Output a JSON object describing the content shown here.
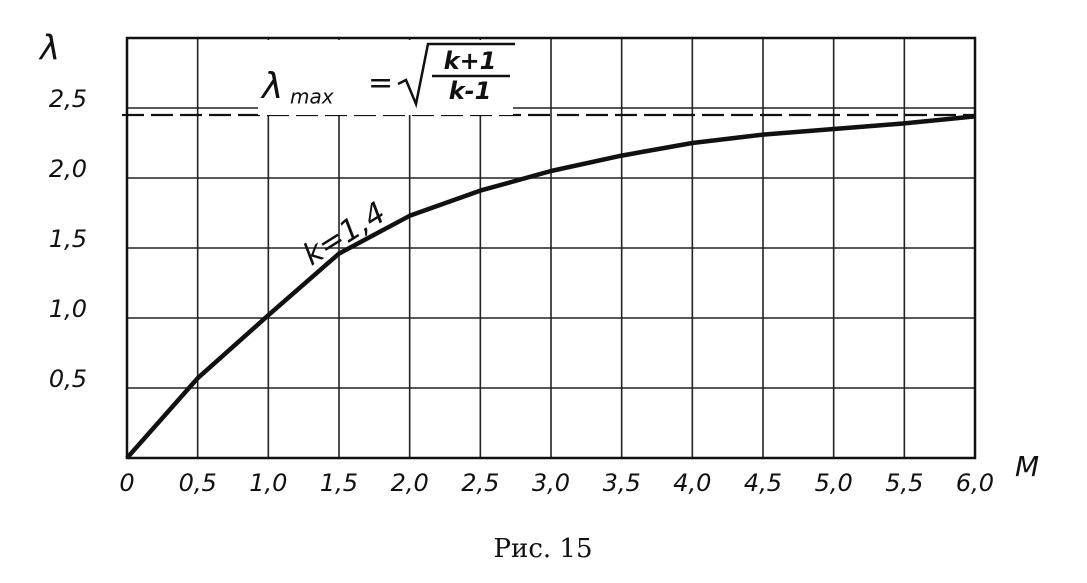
{
  "chart_data": {
    "type": "line",
    "x_label": "M",
    "y_label": "λ",
    "caption": "Рис. 15",
    "curve_label": "k=1,4",
    "formula": {
      "lambda": "λ",
      "sub": "max",
      "equals": "=",
      "numerator": "k+1",
      "denominator": "k-1"
    },
    "reference_line": 2.45,
    "x": [
      0,
      0.5,
      1.0,
      1.5,
      2.0,
      2.5,
      3.0,
      3.5,
      4.0,
      4.5,
      5.0,
      5.5,
      6.0
    ],
    "series": [
      {
        "name": "k=1,4",
        "color": "#111111",
        "values": [
          0,
          0.57,
          1.02,
          1.46,
          1.73,
          1.91,
          2.05,
          2.16,
          2.25,
          2.31,
          2.35,
          2.39,
          2.44
        ]
      }
    ],
    "xlim": [
      0,
      6.0
    ],
    "ylim": [
      0,
      3.0
    ],
    "xticks": [
      0,
      {
        "value": 0.5,
        "label": "0,5"
      },
      {
        "value": 1.0,
        "label": "1,0"
      },
      {
        "value": 1.5,
        "label": "1,5"
      },
      {
        "value": 2.0,
        "label": "2,0"
      },
      {
        "value": 2.5,
        "label": "2,5"
      },
      {
        "value": 3.0,
        "label": "3,0"
      },
      {
        "value": 3.5,
        "label": "3,5"
      },
      {
        "value": 4.0,
        "label": "4,0"
      },
      {
        "value": 4.5,
        "label": "4,5"
      },
      {
        "value": 5.0,
        "label": "5,0"
      },
      {
        "value": 5.5,
        "label": "5,5"
      },
      {
        "value": 6.0,
        "label": "6,0"
      }
    ],
    "yticks": [
      {
        "value": 0.5,
        "label": "0,5"
      },
      {
        "value": 1.0,
        "label": "1,0"
      },
      {
        "value": 1.5,
        "label": "1,5"
      },
      {
        "value": 2.0,
        "label": "2,0"
      },
      {
        "value": 2.5,
        "label": "2,5"
      }
    ],
    "grid": true
  }
}
